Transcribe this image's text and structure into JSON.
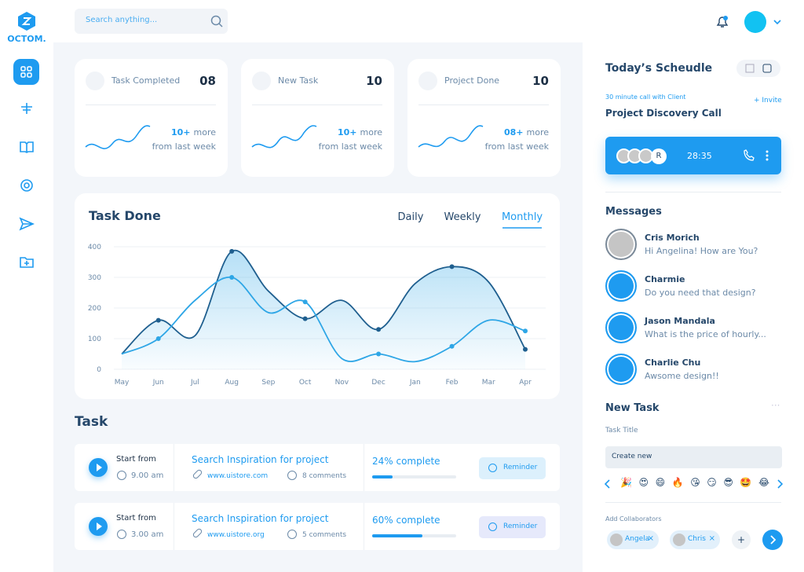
{
  "brand": "OCTOM.",
  "search_placeholder": "Search anything...",
  "stats": [
    {
      "title": "Task Completed",
      "count": "08",
      "delta": "10+",
      "delta_text": "more",
      "note": "from last week"
    },
    {
      "title": "New Task",
      "count": "10",
      "delta": "10+",
      "delta_text": "more",
      "note": "from last week"
    },
    {
      "title": "Project Done",
      "count": "10",
      "delta": "08+",
      "delta_text": "more",
      "note": "from last week"
    }
  ],
  "chart_data": {
    "type": "line",
    "title": "Task Done",
    "tabs": [
      "Daily",
      "Weekly",
      "Monthly"
    ],
    "active_tab": "Monthly",
    "categories": [
      "May",
      "Jun",
      "Jul",
      "Aug",
      "Sep",
      "Oct",
      "Nov",
      "Dec",
      "Jan",
      "Feb",
      "Mar",
      "Apr"
    ],
    "series": [
      {
        "color": "#1f5f8f",
        "values": [
          50,
          160,
          110,
          385,
          255,
          165,
          225,
          130,
          280,
          335,
          285,
          65
        ]
      },
      {
        "color": "#2ea6e6",
        "values": [
          50,
          100,
          225,
          300,
          185,
          220,
          35,
          50,
          25,
          75,
          160,
          125
        ]
      }
    ],
    "ylim": [
      0,
      400
    ],
    "yticks": [
      0,
      100,
      200,
      300,
      400
    ],
    "grid": true
  },
  "tasks_title": "Task",
  "tasks": [
    {
      "start_label": "Start from",
      "time": "9.00 am",
      "title": "Search Inspiration for project",
      "link": "www.uistore.com",
      "comments": "8 comments",
      "progress_label": "24% complete",
      "progress": 24,
      "button": "Reminder"
    },
    {
      "start_label": "Start from",
      "time": "3.00 am",
      "title": "Search Inspiration for project",
      "link": "www.uistore.org",
      "comments": "5 comments",
      "progress_label": "60% complete",
      "progress": 60,
      "button": "Reminder"
    }
  ],
  "schedule": {
    "title": "Today’s Scheudle",
    "subtitle": "30 minute call with Client",
    "invite": "+ Invite",
    "event": "Project Discovery Call",
    "avatar_initial": "R",
    "timer": "28:35"
  },
  "messages_title": "Messages",
  "messages": [
    {
      "name": "Cris Morich",
      "text": "Hi Angelina! How are You?"
    },
    {
      "name": "Charmie",
      "text": "Do you need that design?"
    },
    {
      "name": "Jason Mandala",
      "text": "What is the price of hourly..."
    },
    {
      "name": "Charlie Chu",
      "text": "Awsome design!!"
    }
  ],
  "new_task": {
    "title": "New Task",
    "field_label": "Task Title",
    "input": "Create new",
    "emojis": [
      "🎉",
      "😍",
      "😄",
      "🔥",
      "😘",
      "😏",
      "😎",
      "🤩",
      "😂"
    ],
    "collab_label": "Add Collaborators",
    "collaborators": [
      "Angela",
      "Chris"
    ],
    "add": "+"
  }
}
